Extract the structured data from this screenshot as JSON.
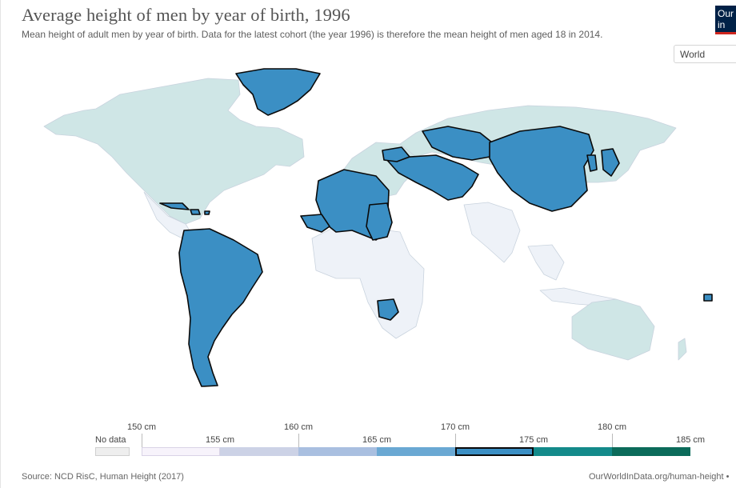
{
  "header": {
    "title": "Average height of men by year of birth, 1996",
    "subtitle": "Mean height of adult men by year of birth. Data for the latest cohort (the year 1996) is therefore the mean height of men aged 18 in 2014."
  },
  "logo": {
    "line1": "Our",
    "line2": "in"
  },
  "region_selector": {
    "value": "World"
  },
  "legend": {
    "no_data_label": "No data",
    "upper_labels": [
      "150 cm",
      "160 cm",
      "170 cm",
      "180 cm"
    ],
    "lower_labels": [
      "155 cm",
      "165 cm",
      "175 cm",
      "185 cm"
    ],
    "bins": [
      {
        "range": "150-155 cm",
        "color": "#f7f3fb"
      },
      {
        "range": "155-160 cm",
        "color": "#ccd2e6"
      },
      {
        "range": "160-165 cm",
        "color": "#a9bfe0"
      },
      {
        "range": "165-170 cm",
        "color": "#6aa8d3"
      },
      {
        "range": "170-175 cm",
        "color": "#3b8fc4",
        "highlighted": true
      },
      {
        "range": "175-180 cm",
        "color": "#138a8a"
      },
      {
        "range": "180-185 cm",
        "color": "#0b6b5a"
      }
    ]
  },
  "map_data": {
    "highlighted_bin": "170-175 cm",
    "colors": {
      "ocean": "#ffffff",
      "land_faded": "#eef2f8",
      "land_teal_faded": "#cfe6e6",
      "highlight": "#3b8fc4",
      "highlight_border": "#0a0a0a"
    }
  },
  "footer": {
    "source": "Source: NCD RisC, Human Height (2017)",
    "url": "OurWorldInData.org/human-height •"
  }
}
